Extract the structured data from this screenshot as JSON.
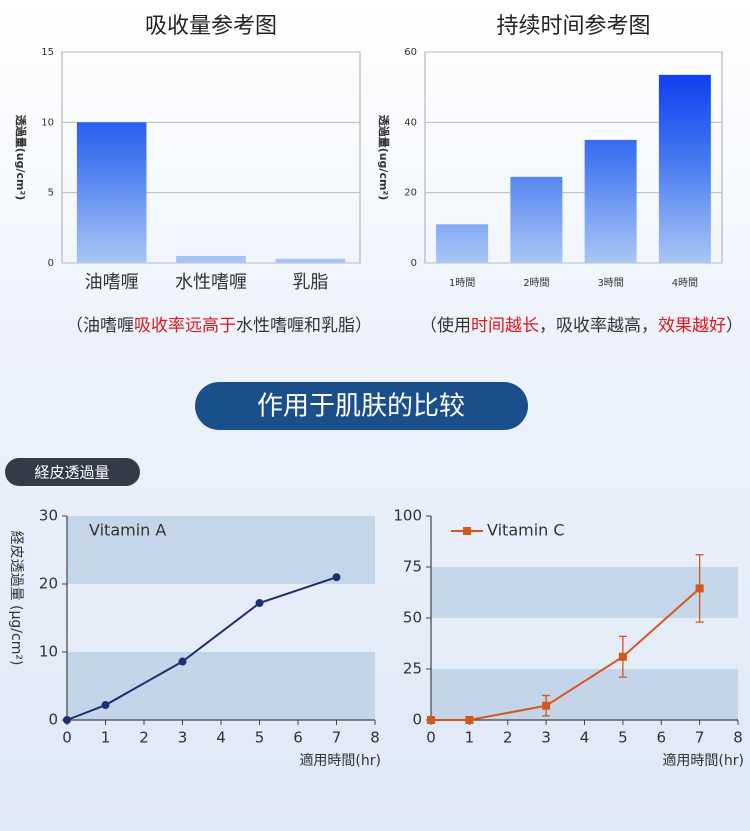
{
  "section_title": "作用于肌肤的比较",
  "section_tag": "経皮透過量",
  "chart_data": [
    {
      "type": "bar",
      "title": "吸收量参考图",
      "ylabel": "透過量(ug/cm²)",
      "categories": [
        "油嗜喱",
        "水性嗜喱",
        "乳脂"
      ],
      "values": [
        10,
        0.5,
        0.3
      ],
      "ylim": [
        0,
        15
      ],
      "yticks": [
        0,
        5,
        10,
        15
      ],
      "grid": true,
      "caption": [
        {
          "text": "（油嗜喱"
        },
        {
          "text": "吸收率远高于",
          "color": "#e0161b"
        },
        {
          "text": "水性嗜喱和乳脂）"
        }
      ]
    },
    {
      "type": "bar",
      "title": "持续时间参考图",
      "ylabel": "透過量(ug/cm²)",
      "categories": [
        "1時間",
        "2時間",
        "3時間",
        "4時間"
      ],
      "values": [
        11,
        24.5,
        35,
        53.5
      ],
      "ylim": [
        0,
        60
      ],
      "yticks": [
        0,
        20,
        40,
        60
      ],
      "grid": true,
      "caption": [
        {
          "text": "（使用"
        },
        {
          "text": "时间越长",
          "color": "#e0161b"
        },
        {
          "text": "，吸收率越高，"
        },
        {
          "text": "效果越好",
          "color": "#e0161b"
        },
        {
          "text": "）"
        }
      ]
    },
    {
      "type": "line",
      "ylabel": "経皮透過量 (μg/cm²)",
      "xlabel": "適用時間(hr)",
      "x": [
        0,
        1,
        3,
        5,
        7
      ],
      "xlim": [
        0,
        8
      ],
      "xticks": [
        0,
        1,
        2,
        3,
        4,
        5,
        6,
        7,
        8
      ],
      "ylim": [
        0,
        30
      ],
      "yticks": [
        0,
        10,
        20,
        30
      ],
      "bands": [
        [
          0,
          10
        ],
        [
          20,
          30
        ]
      ],
      "legend": "upper left",
      "legend_marker": false,
      "series": [
        {
          "name": "Vitamin A",
          "color": "#1f2f6e",
          "marker": "circle",
          "values": [
            0,
            2.2,
            8.6,
            17.2,
            21
          ]
        }
      ]
    },
    {
      "type": "line",
      "xlabel": "適用時間(hr)",
      "x": [
        0,
        1,
        3,
        5,
        7
      ],
      "xlim": [
        0,
        8
      ],
      "xticks": [
        0,
        1,
        2,
        3,
        4,
        5,
        6,
        7,
        8
      ],
      "ylim": [
        0,
        100
      ],
      "yticks": [
        0,
        25,
        50,
        75,
        100
      ],
      "bands": [
        [
          0,
          25
        ],
        [
          50,
          75
        ]
      ],
      "legend": "upper left",
      "legend_marker": true,
      "series": [
        {
          "name": "Vitamin C",
          "color": "#d2581c",
          "marker": "square",
          "values": [
            0,
            0,
            7,
            31,
            64.5
          ],
          "errors": [
            0,
            0,
            5,
            10,
            16.5
          ]
        }
      ]
    }
  ]
}
